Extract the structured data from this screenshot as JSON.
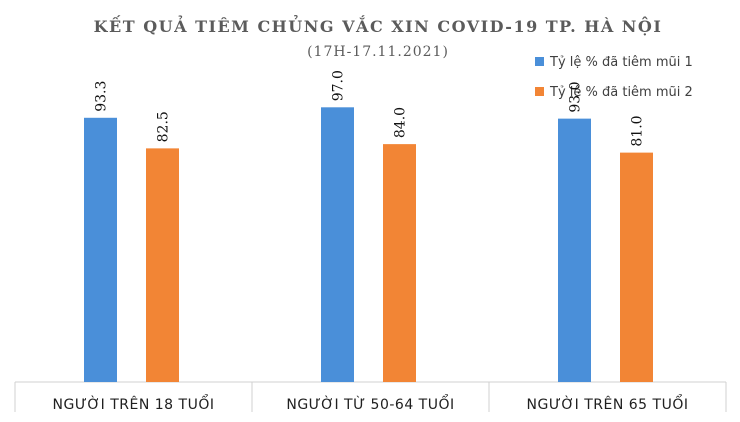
{
  "chart_data": {
    "type": "bar",
    "title": "KẾT QUẢ TIÊM CHỦNG VẮC XIN COVID-19 TP. HÀ NỘI",
    "subtitle": "(17H-17.11.2021)",
    "categories": [
      "NGƯỜI TRÊN 18 TUỔI",
      "NGƯỜI TỪ 50-64 TUỔI",
      "NGƯỜI TRÊN 65 TUỔI"
    ],
    "series": [
      {
        "name": "Tỷ lệ % đã tiêm mũi 1",
        "color": "#4a8fd9",
        "values": [
          93.3,
          97.0,
          93.0
        ],
        "labels": [
          "93.3",
          "97.0",
          "93.0"
        ]
      },
      {
        "name": "Tỷ lệ % đã tiêm mũi 2",
        "color": "#f28535",
        "values": [
          82.5,
          84.0,
          81.0
        ],
        "labels": [
          "82.5",
          "84.0",
          "81.0"
        ]
      }
    ],
    "ylim": [
      0,
      100
    ],
    "grid": false,
    "legend_position": "top-right",
    "data_label_orientation": "vertical",
    "category_separators": true
  }
}
